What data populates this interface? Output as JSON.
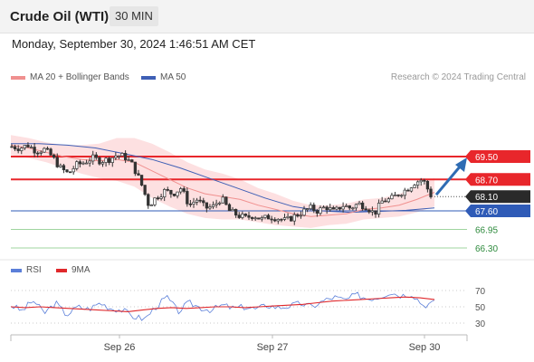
{
  "header": {
    "title": "Crude Oil (WTI)",
    "timeframe": "30 MIN"
  },
  "timestamp": "Monday, September 30, 2024 1:46:51 AM CET",
  "legend": {
    "bollinger_label": "MA 20 + Bollinger Bands",
    "ma50_label": "MA 50",
    "rsi_label": "RSI",
    "rsi_ma_label": "9MA"
  },
  "credit": "Research © 2024 Trading Central",
  "colors": {
    "resistance": "#e8262b",
    "support": "#2f5bb7",
    "target": "#3ea84e",
    "bollinger_band": "#fde0e1",
    "ma20": "#f0908f",
    "ma50": "#3f5fb5",
    "rsi": "#5b7fd9",
    "rsi_ma": "#e0282b",
    "current_price": "#2a2a2a",
    "arrow": "#2f6cb3"
  },
  "chart_data": [
    {
      "type": "candlestick",
      "title": "Crude Oil (WTI)",
      "timeframe": "30 MIN",
      "ylim": [
        66.0,
        70.1
      ],
      "x_tick_labels": [
        "Sep 26",
        "Sep 27",
        "Sep 30"
      ],
      "price_levels": [
        {
          "value": 69.5,
          "label": "69.50",
          "kind": "resistance"
        },
        {
          "value": 68.7,
          "label": "68.70",
          "kind": "resistance"
        },
        {
          "value": 68.1,
          "label": "68.10",
          "kind": "current"
        },
        {
          "value": 67.6,
          "label": "67.60",
          "kind": "support"
        },
        {
          "value": 66.95,
          "label": "66.95",
          "kind": "target"
        },
        {
          "value": 66.3,
          "label": "66.30",
          "kind": "target"
        }
      ],
      "close_path": [
        69.85,
        69.8,
        69.9,
        69.7,
        69.75,
        69.5,
        69.1,
        68.9,
        69.2,
        69.3,
        69.45,
        69.35,
        69.4,
        69.55,
        69.5,
        69.2,
        68.6,
        67.8,
        68.1,
        68.3,
        68.2,
        68.4,
        67.8,
        68.0,
        67.7,
        67.75,
        68.05,
        67.6,
        67.45,
        67.35,
        67.45,
        67.3,
        67.4,
        67.35,
        67.25,
        67.4,
        67.55,
        67.7,
        67.6,
        67.75,
        67.55,
        67.8,
        67.7,
        67.85,
        67.75,
        67.5,
        67.95,
        68.0,
        68.2,
        68.35,
        68.6,
        68.7,
        68.15
      ],
      "ma20_path": [
        69.9,
        69.8,
        69.65,
        69.5,
        69.4,
        69.35,
        69.4,
        69.3,
        69.0,
        68.7,
        68.4,
        68.2,
        68.1,
        68.0,
        67.8,
        67.65,
        67.5,
        67.4,
        67.45,
        67.5,
        67.65,
        67.7,
        67.8,
        68.0,
        68.25
      ],
      "ma50_path": [
        69.95,
        69.95,
        69.9,
        69.8,
        69.6,
        69.4,
        69.1,
        68.75,
        68.4,
        68.05,
        67.75,
        67.6,
        67.55,
        67.58,
        67.62,
        67.7
      ],
      "forecast_arrow": {
        "from": 68.1,
        "to": 69.5
      }
    },
    {
      "type": "line",
      "title": "RSI",
      "series": [
        {
          "name": "RSI",
          "values": [
            52,
            45,
            58,
            42,
            55,
            40,
            50,
            47,
            55,
            48,
            46,
            38,
            35,
            50,
            62,
            44,
            55,
            49,
            46,
            52,
            48,
            50,
            47,
            52,
            49,
            51,
            54,
            50,
            57,
            62,
            58,
            65,
            60,
            62,
            68,
            64,
            66,
            52,
            55
          ]
        },
        {
          "name": "9MA",
          "values": [
            50,
            49,
            50,
            49,
            48,
            47,
            46,
            45,
            44,
            46,
            48,
            49,
            48,
            49,
            50,
            50,
            49,
            50,
            51,
            52,
            53,
            55,
            57,
            58,
            59,
            60,
            61,
            62,
            61,
            59
          ]
        }
      ],
      "yticks": [
        70,
        50,
        30
      ],
      "ylim": [
        20,
        80
      ]
    }
  ]
}
